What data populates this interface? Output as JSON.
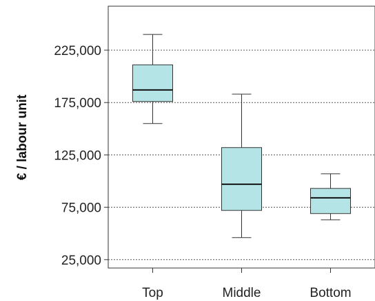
{
  "chart_data": {
    "type": "boxplot",
    "title": "",
    "xlabel": "",
    "ylabel": "€ / labour unit",
    "ylim": [
      17000,
      267000
    ],
    "yticks": [
      25000,
      75000,
      125000,
      175000,
      225000
    ],
    "ytick_labels": [
      "25,000",
      "75,000",
      "125,000",
      "175,000",
      "225,000"
    ],
    "grid": "horizontal dotted",
    "categories": [
      "Top",
      "Middle",
      "Bottom"
    ],
    "boxes": [
      {
        "label": "Top",
        "whisker_low": 155000,
        "q1": 176000,
        "median": 187000,
        "q3": 211000,
        "whisker_high": 240000
      },
      {
        "label": "Middle",
        "whisker_low": 46000,
        "q1": 72000,
        "median": 97000,
        "q3": 132000,
        "whisker_high": 183000
      },
      {
        "label": "Bottom",
        "whisker_low": 63000,
        "q1": 69000,
        "median": 84000,
        "q3": 93000,
        "whisker_high": 107000
      }
    ],
    "box_color": "#b4e4e6",
    "line_color": "#333333"
  }
}
